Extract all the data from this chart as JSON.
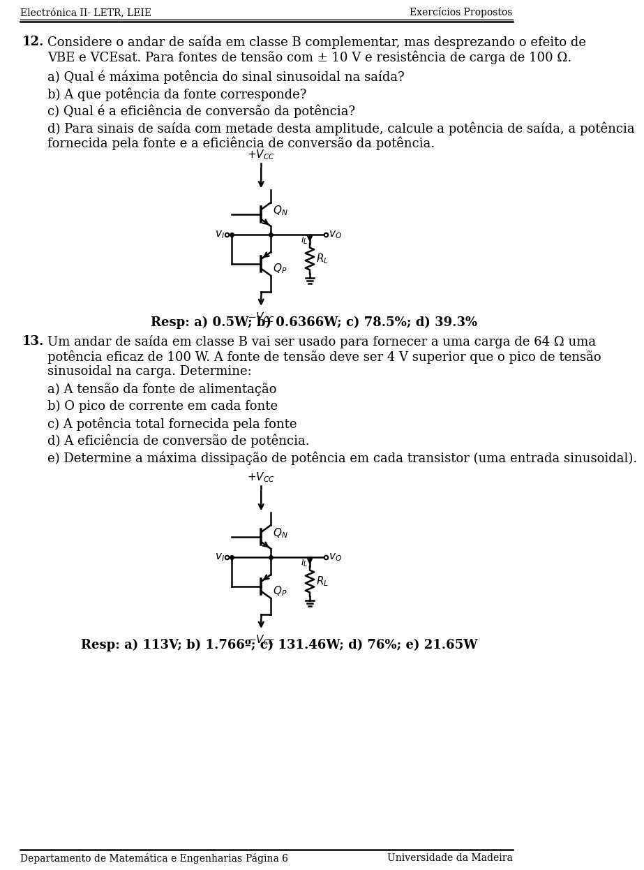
{
  "header_left": "Electrónica II- LETR, LEIE",
  "header_right": "Exercícios Propostos",
  "footer_left": "Departamento de Matemática e Engenharias",
  "footer_center": "Página 6",
  "footer_right": "Universidade da Madeira",
  "problem12_number": "12.",
  "problem12_line1": "Considere o andar de saída em classe B complementar, mas desprezando o efeito de",
  "problem12_line2": "VBE e VCEsat. Para fontes de tensão com ± 10 V e resistência de carga de 100 Ω.",
  "problem12_a": "a) Qual é máxima potência do sinal sinusoidal na saída?",
  "problem12_b": "b) A que potência da fonte corresponde?",
  "problem12_c": "c) Qual é a eficiência de conversão da potência?",
  "problem12_d1": "d) Para sinais de saída com metade desta amplitude, calcule a potência de saída, a potência",
  "problem12_d2": "fornecida pela fonte e a eficiência de conversão da potência.",
  "resp12": "Resp: a) 0.5W; b) 0.6366W; c) 78.5%; d) 39.3%",
  "problem13_number": "13.",
  "problem13_line1": "Um andar de saída em classe B vai ser usado para fornecer a uma carga de 64 Ω uma",
  "problem13_line2": "potência eficaz de 100 W. A fonte de tensão deve ser 4 V superior que o pico de tensão",
  "problem13_line3": "sinusoidal na carga. Determine:",
  "problem13_a": "a) A tensão da fonte de alimentação",
  "problem13_b": "b) O pico de corrente em cada fonte",
  "problem13_c": "c) A potência total fornecida pela fonte",
  "problem13_d": "d) A eficiência de conversão de potência.",
  "problem13_e": "e) Determine a máxima dissipação de potência em cada transistor (uma entrada sinusoidal).",
  "resp13": "Resp: a) 113V; b) 1.766º; c) 131.46W; d) 76%; e) 21.65W",
  "bg_color": "#ffffff",
  "text_color": "#000000"
}
